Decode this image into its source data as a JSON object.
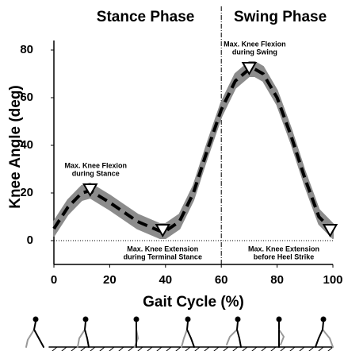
{
  "chart_data": {
    "type": "line",
    "xlabel": "Gait Cycle (%)",
    "ylabel": "Knee Angle (deg)",
    "phases": [
      "Stance Phase",
      "Swing Phase"
    ],
    "phase_boundary": 60,
    "x": [
      0,
      5,
      10,
      13,
      20,
      30,
      38,
      40,
      45,
      50,
      55,
      60,
      65,
      70,
      72,
      75,
      80,
      85,
      90,
      95,
      100
    ],
    "series": [
      {
        "color": "#000000",
        "band_color": "#8c8c8c",
        "values": [
          5,
          14,
          20,
          21,
          16,
          8,
          4,
          4,
          8,
          20,
          38,
          55,
          67,
          72,
          72,
          70,
          60,
          44,
          26,
          10,
          4
        ],
        "upper": [
          8,
          17,
          23,
          24,
          19,
          11,
          7,
          7,
          11,
          23,
          41,
          58,
          70,
          75,
          75,
          73,
          63,
          47,
          29,
          13,
          7
        ],
        "lower": [
          2,
          11,
          17,
          18,
          13,
          5,
          1,
          1,
          5,
          17,
          35,
          52,
          64,
          69,
          69,
          67,
          57,
          41,
          23,
          7,
          1
        ]
      }
    ],
    "annotations": [
      {
        "x": 13,
        "y": 21,
        "text": [
          "Max. Knee Flexion",
          "during Stance"
        ]
      },
      {
        "x": 39,
        "y": 4,
        "text": [
          "Max. Knee Extension",
          "during Terminal Stance"
        ]
      },
      {
        "x": 70,
        "y": 72,
        "text": [
          "Max. Knee Flexion",
          "during Swing"
        ]
      },
      {
        "x": 99,
        "y": 4,
        "text": [
          "Max. Knee Extension",
          "before Heel Strike"
        ]
      }
    ],
    "xlim": [
      0,
      100
    ],
    "ylim": [
      -10,
      84
    ],
    "xticks": [
      0,
      20,
      40,
      60,
      80,
      100
    ],
    "yticks": [
      0,
      20,
      40,
      60,
      80
    ]
  }
}
